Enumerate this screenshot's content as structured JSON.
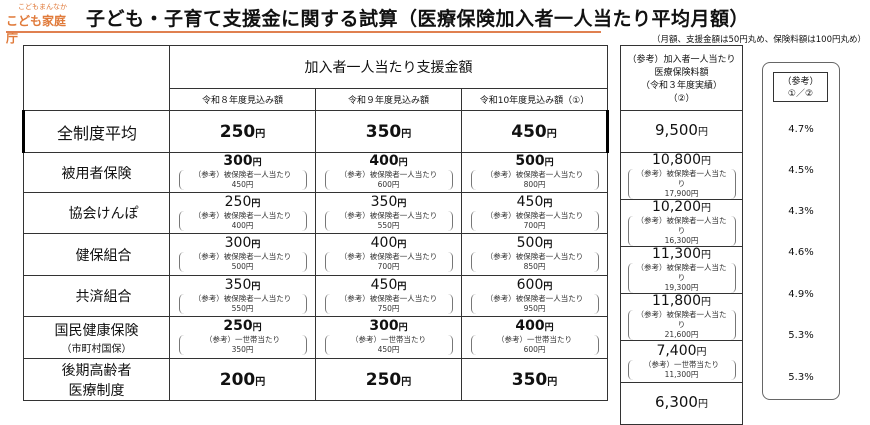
{
  "logo": {
    "small": "こどもまんなか",
    "main": "こども家庭庁"
  },
  "title": "子ども・子育て支援金に関する試算（医療保険加入者一人当たり平均月額）",
  "note": "（月額、支援金額は50円丸め、保険料額は100円丸め）",
  "header": {
    "group": "加入者一人当たり支援金額",
    "years": [
      "令和８年度見込み額",
      "令和９年度見込み額",
      "令和10年度見込み額（①）"
    ],
    "ref_premium": [
      "（参考）加入者一人当たり",
      "医療保険料額",
      "（令和３年度実績）",
      "（②）"
    ],
    "ratio": [
      "（参考）",
      "①／②"
    ]
  },
  "unit": "円",
  "rows": [
    {
      "label": "全制度平均",
      "vals": [
        "250",
        "350",
        "450"
      ],
      "premium": "9,500",
      "ratio": "4.7%"
    },
    {
      "label": "被用者保険",
      "vals": [
        "300",
        "400",
        "500"
      ],
      "refs": [
        "450円",
        "600円",
        "800円"
      ],
      "premium": "10,800",
      "premium_ref": "17,900円",
      "ratio": "4.5%"
    },
    {
      "label": "協会けんぽ",
      "vals": [
        "250",
        "350",
        "450"
      ],
      "refs": [
        "400円",
        "550円",
        "700円"
      ],
      "premium": "10,200",
      "premium_ref": "16,300円",
      "ratio": "4.3%"
    },
    {
      "label": "健保組合",
      "vals": [
        "300",
        "400",
        "500"
      ],
      "refs": [
        "500円",
        "700円",
        "850円"
      ],
      "premium": "11,300",
      "premium_ref": "19,300円",
      "ratio": "4.6%"
    },
    {
      "label": "共済組合",
      "vals": [
        "350",
        "450",
        "600"
      ],
      "refs": [
        "550円",
        "750円",
        "950円"
      ],
      "premium": "11,800",
      "premium_ref": "21,600円",
      "ratio": "4.9%"
    },
    {
      "label": "国民健康保険",
      "label2": "（市町村国保）",
      "vals": [
        "250",
        "300",
        "400"
      ],
      "refs": [
        "350円",
        "450円",
        "600円"
      ],
      "premium": "7,400",
      "premium_ref": "11,300円",
      "ratio": "5.3%"
    },
    {
      "label": "後期高齢者",
      "label2": "医療制度",
      "vals": [
        "200",
        "250",
        "350"
      ],
      "premium": "6,300",
      "ratio": "5.3%"
    }
  ],
  "ref_employee": "（参考）被保険者一人当たり",
  "ref_household": "（参考）一世帯当たり"
}
